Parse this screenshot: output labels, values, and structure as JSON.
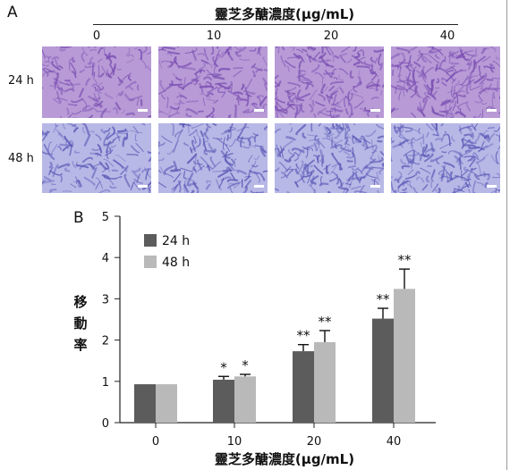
{
  "panel_a": {
    "letter": "A",
    "title": "靈芝多醣濃度(μg/mL)",
    "doses": [
      "0",
      "10",
      "20",
      "40"
    ],
    "rows": [
      {
        "label": "24 h",
        "stain_color": "#7a4fb2",
        "bg_color": "#b89ad6"
      },
      {
        "label": "48 h",
        "stain_color": "#5a58b6",
        "bg_color": "#b7b8e6"
      }
    ],
    "density": [
      0.45,
      0.55,
      0.75,
      0.9
    ]
  },
  "panel_b": {
    "letter": "B",
    "ylabel_chars": [
      "移",
      "動",
      "率"
    ]
  },
  "chart_data": {
    "type": "bar",
    "title": "",
    "xlabel": "靈芝多醣濃度(μg/mL)",
    "ylabel": "移動率",
    "categories": [
      "0",
      "10",
      "20",
      "40"
    ],
    "ylim": [
      0,
      5
    ],
    "yticks": [
      0,
      1,
      2,
      3,
      4,
      5
    ],
    "legend_position": "top-left",
    "series": [
      {
        "name": "24 h",
        "color": "#5c5c5c",
        "values": [
          0.93,
          1.04,
          1.73,
          2.52
        ],
        "errors": [
          0,
          0.08,
          0.16,
          0.25
        ],
        "significance": [
          "",
          "*",
          "**",
          "**"
        ]
      },
      {
        "name": "48 h",
        "color": "#b9b9b9",
        "values": [
          0.93,
          1.12,
          1.95,
          3.24
        ],
        "errors": [
          0,
          0.05,
          0.28,
          0.48
        ],
        "significance": [
          "",
          "*",
          "**",
          "**"
        ]
      }
    ]
  }
}
